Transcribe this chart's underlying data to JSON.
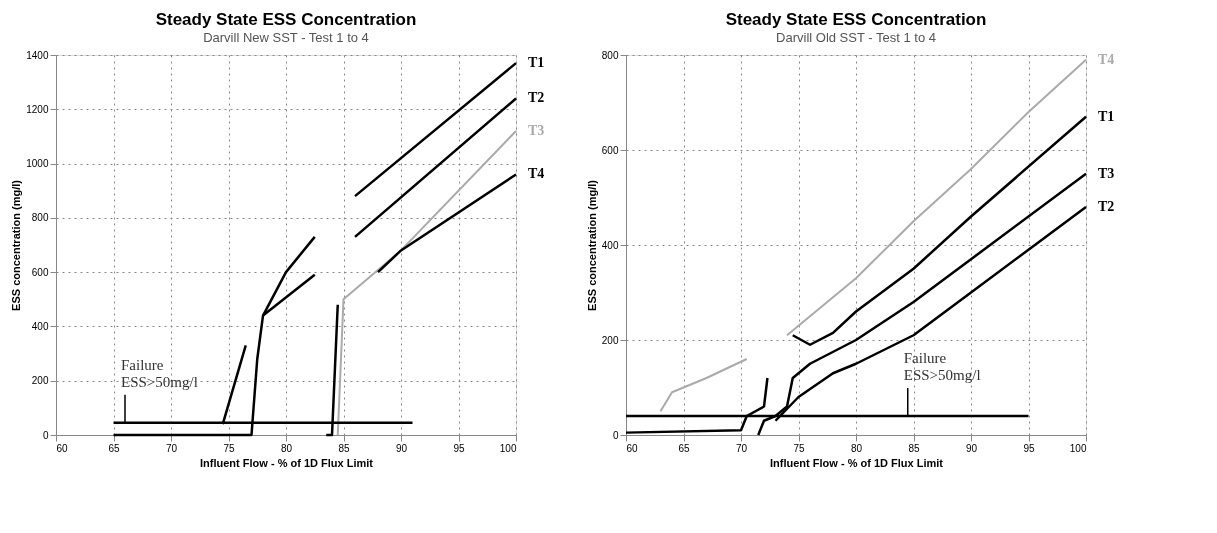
{
  "chart_data": [
    {
      "type": "line",
      "title": "Steady State ESS Concentration",
      "subtitle": "Darvill New SST - Test 1 to 4",
      "xlabel": "Influent Flow - %  of 1D Flux Limit",
      "ylabel": "ESS concentration (mg/l)",
      "xlim": [
        60,
        100
      ],
      "xticks": [
        60,
        65,
        70,
        75,
        80,
        85,
        90,
        95,
        100
      ],
      "ylim": [
        0,
        1400
      ],
      "yticks": [
        0,
        200,
        400,
        600,
        800,
        1000,
        1200,
        1400
      ],
      "grid": true,
      "marker": "none",
      "line_style": "solid",
      "series": [
        {
          "name": "T1",
          "color": "#000000",
          "x": [
            65,
            77,
            77.5,
            78,
            80,
            82.5,
            84,
            86,
            100
          ],
          "values": [
            0,
            0,
            280,
            440,
            600,
            730,
            null,
            880,
            1370
          ]
        },
        {
          "name": "T2",
          "color": "#000000",
          "x": [
            74.5,
            76.5,
            77,
            78,
            82.5,
            84,
            86,
            100
          ],
          "values": [
            40,
            330,
            null,
            440,
            590,
            null,
            730,
            1240
          ]
        },
        {
          "name": "T3",
          "color": "#aaaaaa",
          "x": [
            84.5,
            85,
            90,
            100
          ],
          "values": [
            0,
            500,
            680,
            1120
          ]
        },
        {
          "name": "T4",
          "color": "#000000",
          "x": [
            83.5,
            84,
            84.5,
            85,
            88,
            90,
            100
          ],
          "values": [
            0,
            0,
            480,
            null,
            600,
            680,
            960
          ]
        },
        {
          "color": "#000000",
          "x": [
            65,
            91
          ],
          "values": [
            45,
            45
          ]
        }
      ],
      "annotations": [
        {
          "text": "Failure ESS>50mg/l",
          "x": 66,
          "y": 45
        }
      ]
    },
    {
      "type": "line",
      "title": "Steady State ESS Concentration",
      "subtitle": "Darvill Old SST - Test 1 to 4",
      "xlabel": "Influent Flow - %  of 1D Flux Limit",
      "ylabel": "ESS concentration (mg/l)",
      "xlim": [
        60,
        100
      ],
      "xticks": [
        60,
        65,
        70,
        75,
        80,
        85,
        90,
        95,
        100
      ],
      "ylim": [
        0,
        800
      ],
      "yticks": [
        0,
        200,
        400,
        600,
        800
      ],
      "grid": true,
      "marker": "none",
      "line_style": "solid",
      "series": [
        {
          "name": "T1",
          "color": "#000000",
          "x": [
            60,
            70,
            70.5,
            72,
            72.3,
            73,
            74.5,
            76,
            78,
            80,
            85,
            90,
            100
          ],
          "values": [
            5,
            10,
            40,
            60,
            120,
            null,
            210,
            190,
            215,
            260,
            350,
            460,
            670
          ]
        },
        {
          "name": "T2",
          "color": "#000000",
          "x": [
            73,
            75,
            78,
            80,
            85,
            90,
            100
          ],
          "values": [
            30,
            80,
            130,
            150,
            210,
            300,
            480
          ]
        },
        {
          "name": "T3",
          "color": "#000000",
          "x": [
            71.5,
            72,
            73,
            74,
            74.5,
            76,
            80,
            85,
            90,
            100
          ],
          "values": [
            0,
            30,
            40,
            60,
            120,
            150,
            200,
            280,
            370,
            550
          ]
        },
        {
          "name": "T4",
          "color": "#aaaaaa",
          "x": [
            63,
            64,
            67,
            70.5,
            72,
            74,
            80,
            85,
            90,
            95,
            100
          ],
          "values": [
            50,
            90,
            120,
            160,
            null,
            210,
            330,
            450,
            560,
            680,
            790
          ]
        },
        {
          "color": "#000000",
          "x": [
            60,
            95
          ],
          "values": [
            40,
            40
          ]
        }
      ],
      "annotations": [
        {
          "text": "Failure ESS>50mg/l",
          "x": 84.5,
          "y": 40
        }
      ]
    }
  ]
}
